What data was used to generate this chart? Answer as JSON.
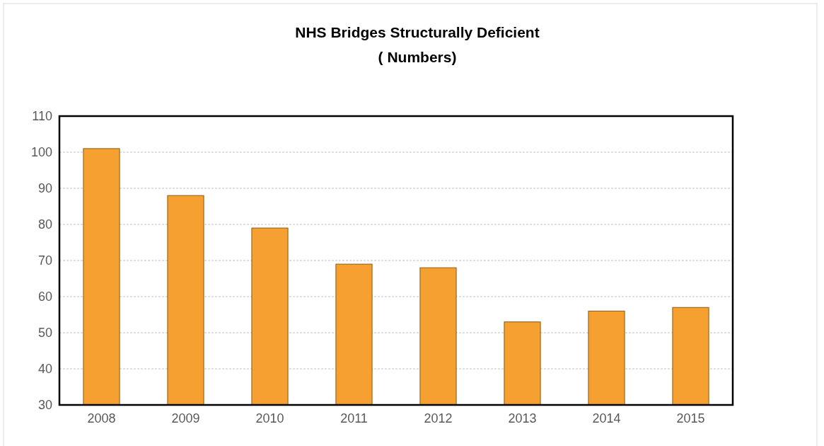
{
  "chart_data": {
    "type": "bar",
    "title": "NHS Bridges Structurally Deficient",
    "subtitle": "( Numbers)",
    "categories": [
      "2008",
      "2009",
      "2010",
      "2011",
      "2012",
      "2013",
      "2014",
      "2015"
    ],
    "values": [
      101,
      88,
      79,
      69,
      68,
      53,
      56,
      57
    ],
    "color": "#f5a030",
    "ylim": [
      30,
      110
    ],
    "yticks": [
      30,
      40,
      50,
      60,
      70,
      80,
      90,
      100,
      110
    ],
    "grid": "y"
  }
}
